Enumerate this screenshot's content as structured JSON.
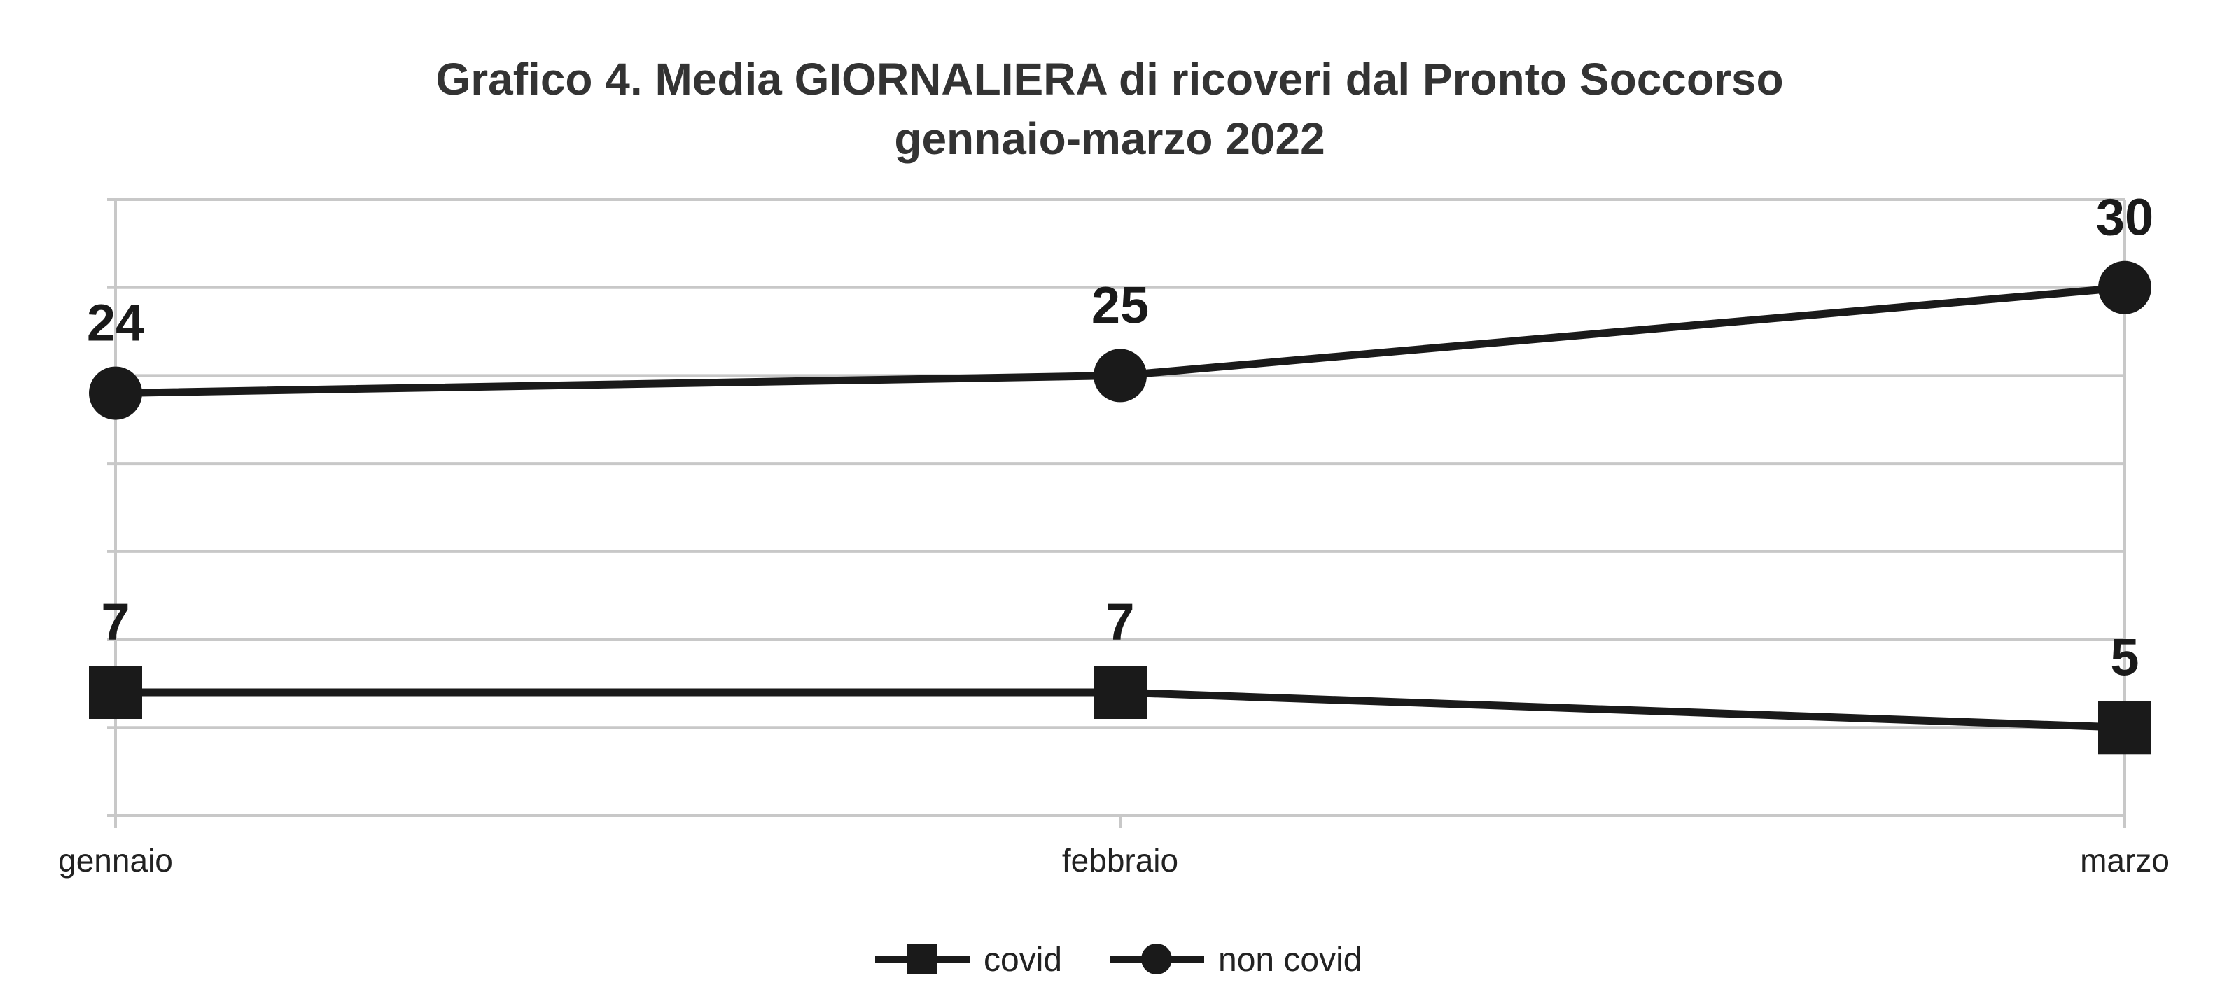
{
  "chart_data": {
    "type": "line",
    "title": "Grafico 4. Media GIORNALIERA di ricoveri dal Pronto Soccorso",
    "subtitle": "gennaio-marzo 2022",
    "categories": [
      "gennaio",
      "febbraio",
      "marzo"
    ],
    "series": [
      {
        "name": "covid",
        "values": [
          7,
          7,
          5
        ],
        "marker": "square",
        "color": "#1a1a1a"
      },
      {
        "name": "non covid",
        "values": [
          24,
          25,
          30
        ],
        "marker": "circle",
        "color": "#1a1a1a"
      }
    ],
    "xlabel": "",
    "ylabel": "",
    "ylim": [
      0,
      35
    ],
    "grid": true,
    "legend": "bottom-center"
  }
}
